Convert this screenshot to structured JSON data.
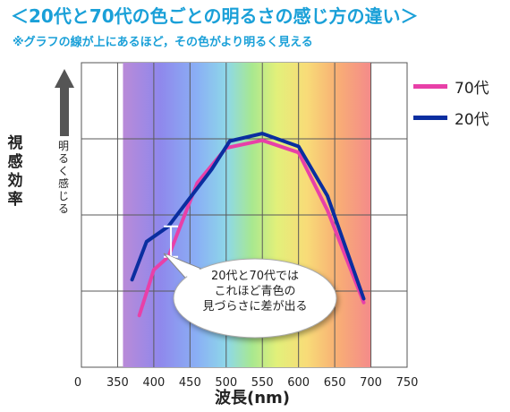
{
  "title": "＜20代と70代の色ごとの明るさの感じ方の違い＞",
  "subtitle": "※グラフの線が上にあるほど，その色がより明るく見える",
  "chart_data": {
    "type": "line",
    "xlabel": "波長(nm)",
    "ylabel": "視感効率",
    "ylabel_arrow": "明るく感じる",
    "xlim": [
      0,
      750
    ],
    "x_ticks": [
      "0",
      "350",
      "400",
      "450",
      "500",
      "550",
      "600",
      "650",
      "700",
      "750"
    ],
    "ylim": [
      0,
      4
    ],
    "y_grid": [
      1,
      2,
      3
    ],
    "grid": true,
    "legend_position": "top-right",
    "series": [
      {
        "name": "70代",
        "color": "#e840a8",
        "x": [
          380,
          400,
          420,
          460,
          500,
          550,
          600,
          640,
          690
        ],
        "y": [
          0.68,
          1.28,
          1.45,
          2.42,
          2.88,
          2.98,
          2.82,
          2.06,
          0.85
        ]
      },
      {
        "name": "20代",
        "color": "#0a2ea0",
        "x": [
          370,
          390,
          420,
          480,
          505,
          550,
          600,
          640,
          690
        ],
        "y": [
          1.15,
          1.65,
          1.85,
          2.6,
          2.97,
          3.07,
          2.9,
          2.25,
          0.9
        ]
      }
    ],
    "annotation": {
      "lines": [
        "20代と70代では",
        "これほど青色の",
        "見づらさに差が出る"
      ],
      "at_x": 420,
      "from_y": 1.45,
      "to_y": 1.85
    },
    "background_spectrum": [
      350,
      700
    ]
  }
}
